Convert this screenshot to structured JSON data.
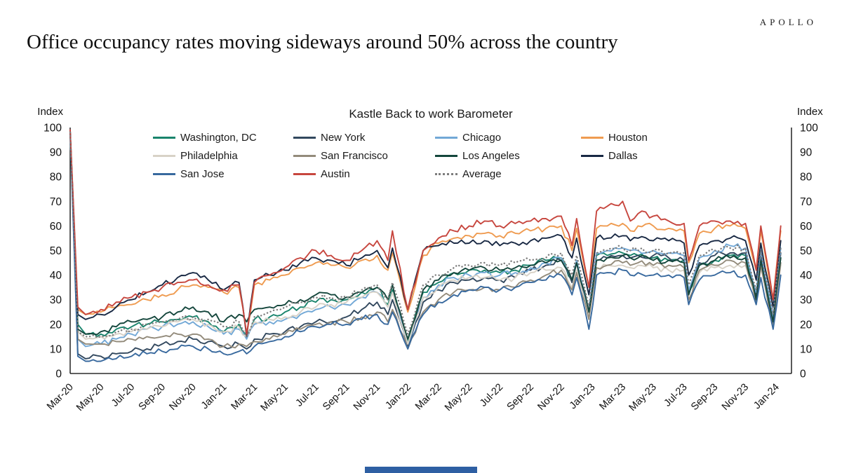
{
  "brand": "APOLLO",
  "title": "Office occupancy rates moving sideways around 50% across the country",
  "footer": {
    "accent_color": "#2e5fa3"
  },
  "chart_data": {
    "type": "line",
    "title": "Kastle Back to work Barometer",
    "y_axis_label_left": "Index",
    "y_axis_label_right": "Index",
    "ylim": [
      0,
      100
    ],
    "ytick_step": 10,
    "xlim": [
      0,
      47
    ],
    "x_unit": "months since Mar-2020 (weekly survey data)",
    "grid": false,
    "legend_position": "top-inside",
    "xtick_positions": [
      0,
      2,
      4,
      6,
      8,
      10,
      12,
      14,
      16,
      18,
      20,
      22,
      24,
      26,
      28,
      30,
      32,
      34,
      36,
      38,
      40,
      42,
      44,
      46
    ],
    "xtick_labels": [
      "Mar-20",
      "May-20",
      "Jul-20",
      "Sep-20",
      "Nov-20",
      "Jan-21",
      "Mar-21",
      "May-21",
      "Jul-21",
      "Sep-21",
      "Nov-21",
      "Jan-22",
      "Mar-22",
      "May-22",
      "Jul-22",
      "Sep-22",
      "Nov-22",
      "Jan-23",
      "Mar-23",
      "May-23",
      "Jul-23",
      "Sep-23",
      "Nov-23",
      "Jan-24"
    ],
    "x": [
      0,
      0.5,
      1,
      2,
      3,
      4,
      5,
      6,
      7,
      8,
      9,
      10,
      11,
      11.5,
      12,
      13,
      14,
      15,
      16,
      17,
      18,
      19,
      20,
      20.7,
      21,
      22,
      23,
      24,
      25,
      26,
      27,
      28,
      29,
      30,
      31,
      32,
      32.7,
      33,
      33.8,
      34.3,
      35,
      36,
      36.5,
      37,
      38,
      39,
      40,
      40.3,
      41,
      42,
      43,
      44,
      44.7,
      45,
      45.8,
      46.3
    ],
    "series": [
      {
        "name": "Washington, DC",
        "color": "#19846c",
        "dotted": false,
        "values": [
          98,
          20,
          16,
          16,
          18,
          19,
          20,
          21,
          22,
          23,
          21,
          17,
          20,
          16,
          22,
          23,
          25,
          27,
          29,
          30,
          30,
          33,
          35,
          28,
          34,
          13,
          33,
          37,
          41,
          42,
          42,
          41,
          42,
          44,
          46,
          47,
          38,
          46,
          25,
          48,
          48,
          49,
          48,
          48,
          47,
          46,
          46,
          33,
          44,
          46,
          48,
          48,
          31,
          47,
          22,
          47
        ]
      },
      {
        "name": "New York",
        "color": "#32485e",
        "dotted": false,
        "values": [
          99,
          8,
          6,
          7,
          8,
          9,
          10,
          12,
          13,
          14,
          13,
          11,
          12,
          10,
          14,
          16,
          17,
          19,
          21,
          21,
          23,
          26,
          29,
          24,
          30,
          11,
          29,
          34,
          37,
          38,
          39,
          38,
          39,
          42,
          44,
          46,
          37,
          45,
          24,
          46,
          47,
          48,
          47,
          48,
          48,
          47,
          46,
          32,
          45,
          48,
          49,
          49,
          31,
          48,
          21,
          49
        ]
      },
      {
        "name": "Chicago",
        "color": "#72a8d6",
        "dotted": false,
        "values": [
          98,
          14,
          11,
          12,
          14,
          16,
          18,
          19,
          20,
          21,
          19,
          16,
          18,
          14,
          20,
          21,
          22,
          24,
          26,
          27,
          28,
          31,
          33,
          27,
          33,
          12,
          31,
          36,
          39,
          40,
          41,
          40,
          41,
          43,
          45,
          47,
          38,
          46,
          26,
          49,
          50,
          51,
          50,
          50,
          50,
          49,
          48,
          34,
          47,
          50,
          52,
          51,
          33,
          50,
          23,
          51
        ]
      },
      {
        "name": "Houston",
        "color": "#ef9b50",
        "dotted": false,
        "values": [
          98,
          26,
          24,
          25,
          27,
          28,
          30,
          32,
          34,
          36,
          35,
          33,
          35,
          16,
          36,
          38,
          40,
          43,
          45,
          44,
          43,
          46,
          48,
          42,
          49,
          25,
          48,
          53,
          55,
          56,
          57,
          56,
          57,
          58,
          59,
          60,
          50,
          59,
          35,
          59,
          60,
          61,
          58,
          60,
          60,
          59,
          58,
          45,
          57,
          59,
          60,
          59,
          42,
          58,
          30,
          58
        ]
      },
      {
        "name": "Philadelphia",
        "color": "#d8d2c7",
        "dotted": false,
        "values": [
          98,
          17,
          14,
          15,
          16,
          17,
          18,
          19,
          21,
          22,
          20,
          17,
          19,
          15,
          21,
          22,
          23,
          25,
          27,
          28,
          29,
          31,
          33,
          27,
          33,
          12,
          31,
          35,
          38,
          39,
          39,
          38,
          39,
          41,
          42,
          43,
          35,
          42,
          23,
          43,
          44,
          44,
          43,
          44,
          43,
          42,
          42,
          29,
          41,
          43,
          44,
          44,
          28,
          43,
          20,
          44
        ]
      },
      {
        "name": "San Francisco",
        "color": "#938b7b",
        "dotted": false,
        "values": [
          98,
          14,
          12,
          12,
          13,
          14,
          15,
          15,
          16,
          16,
          14,
          11,
          12,
          11,
          13,
          14,
          16,
          18,
          20,
          21,
          21,
          23,
          25,
          21,
          26,
          10,
          25,
          30,
          33,
          34,
          35,
          34,
          35,
          38,
          40,
          42,
          34,
          41,
          22,
          43,
          44,
          45,
          44,
          45,
          44,
          44,
          43,
          30,
          42,
          44,
          46,
          45,
          29,
          44,
          20,
          45
        ]
      },
      {
        "name": "Los Angeles",
        "color": "#14463c",
        "dotted": false,
        "values": [
          98,
          18,
          16,
          17,
          19,
          21,
          22,
          23,
          25,
          27,
          25,
          21,
          24,
          21,
          26,
          27,
          28,
          30,
          32,
          32,
          31,
          33,
          35,
          30,
          36,
          14,
          34,
          38,
          41,
          42,
          43,
          42,
          43,
          44,
          45,
          46,
          38,
          45,
          25,
          46,
          47,
          48,
          47,
          47,
          46,
          46,
          45,
          32,
          44,
          46,
          47,
          47,
          30,
          46,
          21,
          47
        ]
      },
      {
        "name": "Dallas",
        "color": "#182843",
        "dotted": false,
        "values": [
          99,
          24,
          22,
          24,
          27,
          30,
          33,
          36,
          39,
          41,
          38,
          34,
          37,
          15,
          38,
          40,
          42,
          45,
          47,
          46,
          44,
          47,
          50,
          43,
          51,
          26,
          50,
          52,
          53,
          53,
          54,
          52,
          53,
          54,
          55,
          56,
          47,
          55,
          32,
          55,
          55,
          56,
          54,
          55,
          54,
          54,
          53,
          40,
          52,
          54,
          55,
          54,
          38,
          53,
          27,
          54
        ]
      },
      {
        "name": "San Jose",
        "color": "#38699e",
        "dotted": false,
        "values": [
          98,
          7,
          5,
          5,
          6,
          7,
          8,
          9,
          10,
          11,
          10,
          8,
          9,
          8,
          11,
          13,
          15,
          17,
          19,
          20,
          20,
          22,
          24,
          20,
          25,
          10,
          24,
          29,
          32,
          34,
          35,
          34,
          35,
          37,
          38,
          40,
          32,
          39,
          18,
          40,
          41,
          42,
          40,
          41,
          40,
          40,
          39,
          28,
          38,
          40,
          41,
          40,
          28,
          39,
          18,
          40
        ]
      },
      {
        "name": "Austin",
        "color": "#c7463e",
        "dotted": false,
        "values": [
          99,
          27,
          24,
          26,
          29,
          31,
          33,
          35,
          37,
          38,
          36,
          34,
          36,
          16,
          37,
          40,
          43,
          47,
          50,
          48,
          46,
          50,
          54,
          46,
          58,
          26,
          50,
          55,
          58,
          60,
          62,
          60,
          61,
          62,
          63,
          64,
          52,
          63,
          35,
          66,
          68,
          70,
          62,
          65,
          64,
          62,
          61,
          46,
          60,
          62,
          62,
          61,
          42,
          60,
          30,
          60
        ]
      },
      {
        "name": "Average",
        "color": "#7d7d7d",
        "dotted": true,
        "values": [
          98,
          17,
          15,
          15,
          17,
          18,
          20,
          21,
          22,
          23,
          22,
          19,
          21,
          15,
          23,
          25,
          27,
          29,
          31,
          31,
          31,
          34,
          36,
          30,
          37,
          16,
          36,
          40,
          43,
          44,
          45,
          44,
          45,
          46,
          47,
          49,
          40,
          48,
          27,
          49,
          50,
          51,
          50,
          50,
          50,
          49,
          49,
          36,
          48,
          50,
          51,
          51,
          34,
          50,
          24,
          51
        ]
      }
    ],
    "render_hints": {
      "jitter": 1.3
    }
  }
}
